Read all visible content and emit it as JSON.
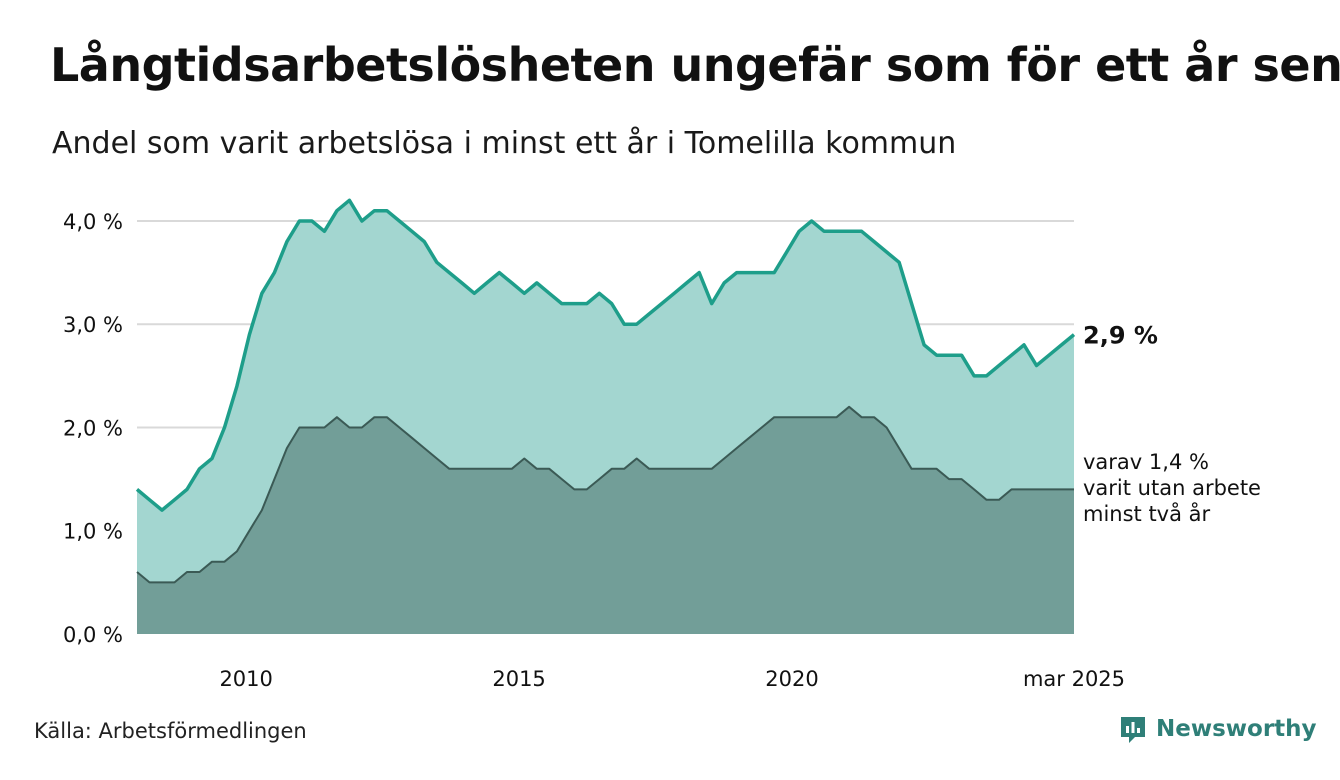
{
  "header": {
    "title": "Långtidsarbetslösheten ungefär som för ett år sen",
    "subtitle": "Andel som varit arbetslösa i minst ett år i Tomelilla kommun"
  },
  "footer": {
    "source": "Källa: Arbetsförmedlingen",
    "brand": "Newsworthy"
  },
  "colors": {
    "series1_line": "#1e9e8a",
    "series1_fill": "#a3d6d0",
    "series2_line": "#3b5a55",
    "series2_fill": "#729e98",
    "grid": "#d9d9d9"
  },
  "chart_data": {
    "type": "area",
    "x_start": "2008-01",
    "x_end": "2025-03",
    "x_step": "quarter",
    "xticks": [
      {
        "date": "2010-01",
        "label": "2010"
      },
      {
        "date": "2015-01",
        "label": "2015"
      },
      {
        "date": "2020-01",
        "label": "2020"
      },
      {
        "date": "2025-03",
        "label": "mar 2025"
      }
    ],
    "ylim": [
      0,
      4.3
    ],
    "yticks": [
      {
        "value": 0,
        "label": "0,0 %"
      },
      {
        "value": 1,
        "label": "1,0 %"
      },
      {
        "value": 2,
        "label": "2,0 %"
      },
      {
        "value": 3,
        "label": "3,0 %"
      },
      {
        "value": 4,
        "label": "4,0 %"
      }
    ],
    "grid": true,
    "series": [
      {
        "annotation": "2,9 %",
        "values": [
          1.4,
          1.3,
          1.2,
          1.3,
          1.4,
          1.6,
          1.7,
          2.0,
          2.4,
          2.9,
          3.3,
          3.5,
          3.8,
          4.0,
          4.0,
          3.9,
          4.1,
          4.2,
          4.0,
          4.1,
          4.1,
          4.0,
          3.9,
          3.8,
          3.6,
          3.5,
          3.4,
          3.3,
          3.4,
          3.5,
          3.4,
          3.3,
          3.4,
          3.3,
          3.2,
          3.2,
          3.2,
          3.3,
          3.2,
          3.0,
          3.0,
          3.1,
          3.2,
          3.3,
          3.4,
          3.5,
          3.2,
          3.4,
          3.5,
          3.5,
          3.5,
          3.5,
          3.7,
          3.9,
          4.0,
          3.9,
          3.9,
          3.9,
          3.9,
          3.8,
          3.7,
          3.6,
          3.2,
          2.8,
          2.7,
          2.7,
          2.7,
          2.5,
          2.5,
          2.6,
          2.7,
          2.8,
          2.6,
          2.7,
          2.8,
          2.9
        ]
      },
      {
        "annotation": [
          "varav 1,4 %",
          "varit utan arbete",
          "minst två år"
        ],
        "values": [
          0.6,
          0.5,
          0.5,
          0.5,
          0.6,
          0.6,
          0.7,
          0.7,
          0.8,
          1.0,
          1.2,
          1.5,
          1.8,
          2.0,
          2.0,
          2.0,
          2.1,
          2.0,
          2.0,
          2.1,
          2.1,
          2.0,
          1.9,
          1.8,
          1.7,
          1.6,
          1.6,
          1.6,
          1.6,
          1.6,
          1.6,
          1.7,
          1.6,
          1.6,
          1.5,
          1.4,
          1.4,
          1.5,
          1.6,
          1.6,
          1.7,
          1.6,
          1.6,
          1.6,
          1.6,
          1.6,
          1.6,
          1.7,
          1.8,
          1.9,
          2.0,
          2.1,
          2.1,
          2.1,
          2.1,
          2.1,
          2.1,
          2.2,
          2.1,
          2.1,
          2.0,
          1.8,
          1.6,
          1.6,
          1.6,
          1.5,
          1.5,
          1.4,
          1.3,
          1.3,
          1.4,
          1.4,
          1.4,
          1.4,
          1.4,
          1.4
        ]
      }
    ]
  }
}
